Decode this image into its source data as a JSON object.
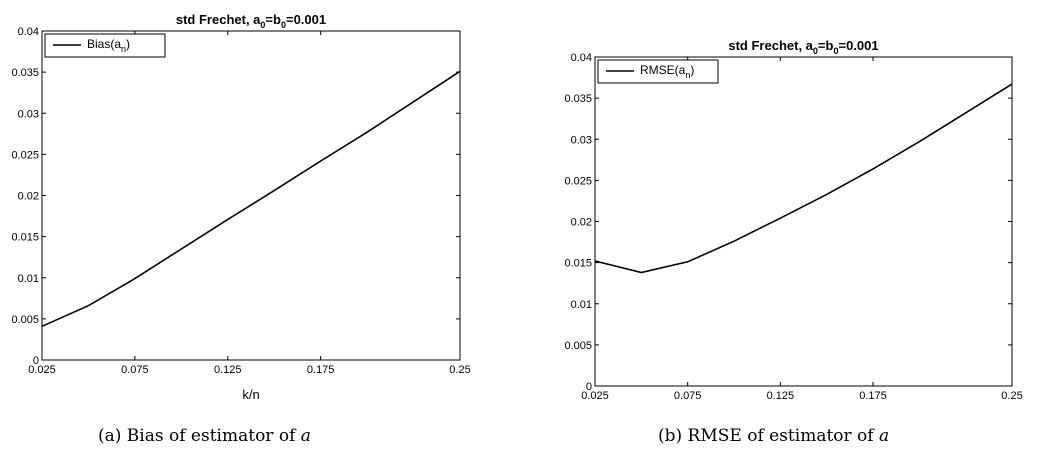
{
  "chart_data": [
    {
      "type": "line",
      "title_main": "std Frechet, a",
      "title_sub1": "0",
      "title_mid": "=b",
      "title_sub2": "0",
      "title_end": "=0.001",
      "xlabel": "k/n",
      "ylabel": "",
      "x_ticks": [
        "0.025",
        "0.075",
        "0.125",
        "0.175",
        "0.25"
      ],
      "x_tick_values": [
        0.025,
        0.075,
        0.125,
        0.175,
        0.25
      ],
      "y_ticks": [
        "0",
        "0.005",
        "0.01",
        "0.015",
        "0.02",
        "0.025",
        "0.03",
        "0.035",
        "0.04"
      ],
      "y_tick_values": [
        0,
        0.005,
        0.01,
        0.015,
        0.02,
        0.025,
        0.03,
        0.035,
        0.04
      ],
      "xlim": [
        0.025,
        0.25
      ],
      "ylim": [
        0,
        0.04
      ],
      "grid": false,
      "legend_position": "top-left",
      "legend_main": "Bias(a",
      "legend_sub": "n",
      "legend_end": ")",
      "series": [
        {
          "name": "Bias(a_n)",
          "color": "#000000",
          "x": [
            0.025,
            0.05,
            0.075,
            0.1,
            0.125,
            0.15,
            0.175,
            0.2,
            0.25
          ],
          "y": [
            0.0041,
            0.0066,
            0.0099,
            0.0135,
            0.0171,
            0.0206,
            0.0242,
            0.0277,
            0.0351
          ]
        }
      ]
    },
    {
      "type": "line",
      "title_main": "std Frechet, a",
      "title_sub1": "0",
      "title_mid": "=b",
      "title_sub2": "0",
      "title_end": "=0.001",
      "xlabel": "",
      "ylabel": "",
      "x_ticks": [
        "0.025",
        "0.075",
        "0.125",
        "0.175",
        "0.25"
      ],
      "x_tick_values": [
        0.025,
        0.075,
        0.125,
        0.175,
        0.25
      ],
      "y_ticks": [
        "0",
        "0.005",
        "0.01",
        "0.015",
        "0.02",
        "0.025",
        "0.03",
        "0.035",
        "0.04"
      ],
      "y_tick_values": [
        0,
        0.005,
        0.01,
        0.015,
        0.02,
        0.025,
        0.03,
        0.035,
        0.04
      ],
      "xlim": [
        0.025,
        0.25
      ],
      "ylim": [
        0,
        0.04
      ],
      "grid": false,
      "legend_position": "top-left",
      "legend_main": "RMSE(a",
      "legend_sub": "n",
      "legend_end": ")",
      "series": [
        {
          "name": "RMSE(a_n)",
          "color": "#000000",
          "x": [
            0.025,
            0.05,
            0.075,
            0.1,
            0.125,
            0.15,
            0.175,
            0.2,
            0.25
          ],
          "y": [
            0.0152,
            0.0138,
            0.0151,
            0.0176,
            0.0204,
            0.0233,
            0.0264,
            0.0297,
            0.0367
          ]
        }
      ]
    }
  ],
  "captions": [
    {
      "label": "(a) Bias of estimator of ",
      "var": "a"
    },
    {
      "label": "(b) RMSE of estimator of ",
      "var": "a"
    }
  ]
}
